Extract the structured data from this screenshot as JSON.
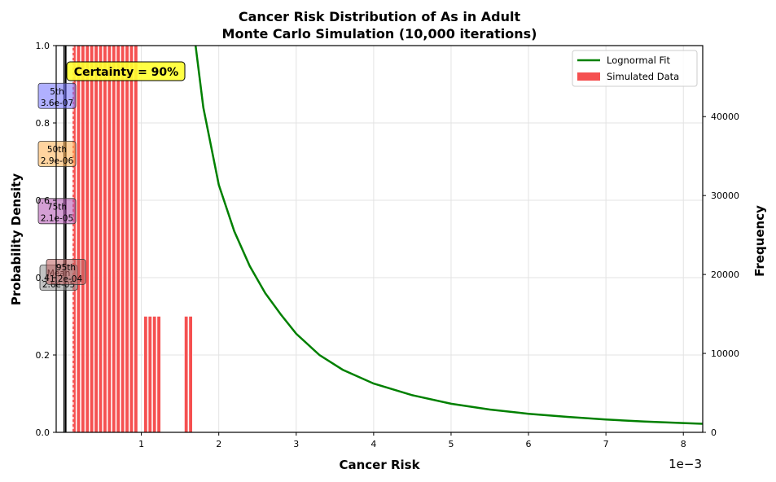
{
  "chart_data": {
    "type": "bar",
    "title_line1": "Cancer Risk Distribution of As in Adult",
    "title_line2": "Monte Carlo Simulation (10,000 iterations)",
    "xlabel": "Cancer Risk",
    "ylabel_left": "Probability Density",
    "ylabel_right": "Frequency",
    "x_offset_label": "1e−3",
    "xlim": [
      -0.0001,
      0.00825
    ],
    "ylim_left": [
      0,
      1.0
    ],
    "ylim_right": [
      0,
      49000
    ],
    "x_ticks": [
      {
        "value": 0.001,
        "label": "1"
      },
      {
        "value": 0.002,
        "label": "2"
      },
      {
        "value": 0.003,
        "label": "3"
      },
      {
        "value": 0.004,
        "label": "4"
      },
      {
        "value": 0.005,
        "label": "5"
      },
      {
        "value": 0.006,
        "label": "6"
      },
      {
        "value": 0.007,
        "label": "7"
      },
      {
        "value": 0.008,
        "label": "8"
      }
    ],
    "y_left_ticks": [
      {
        "value": 0.0,
        "label": "0.0"
      },
      {
        "value": 0.2,
        "label": "0.2"
      },
      {
        "value": 0.4,
        "label": "0.4"
      },
      {
        "value": 0.6,
        "label": "0.6"
      },
      {
        "value": 0.8,
        "label": "0.8"
      },
      {
        "value": 1.0,
        "label": "1.0"
      }
    ],
    "y_right_ticks": [
      {
        "value": 0,
        "label": "0"
      },
      {
        "value": 10000,
        "label": "10000"
      },
      {
        "value": 20000,
        "label": "20000"
      },
      {
        "value": 30000,
        "label": "30000"
      },
      {
        "value": 40000,
        "label": "40000"
      }
    ],
    "grid": true,
    "legend": {
      "placement": "top-right",
      "entries": [
        {
          "label": "Lognormal Fit",
          "color": "#008000",
          "kind": "line"
        },
        {
          "label": "Simulated Data",
          "color": "#f55050",
          "kind": "patch"
        }
      ]
    },
    "histogram": {
      "name": "Simulated Data",
      "color": "#f55050",
      "bins": [
        {
          "x": 0.000108,
          "density": 1.0
        },
        {
          "x": 0.000165,
          "density": 1.0
        },
        {
          "x": 0.000222,
          "density": 1.0
        },
        {
          "x": 0.000279,
          "density": 1.0
        },
        {
          "x": 0.000336,
          "density": 1.0
        },
        {
          "x": 0.000393,
          "density": 1.0
        },
        {
          "x": 0.00045,
          "density": 1.0
        },
        {
          "x": 0.000507,
          "density": 1.0
        },
        {
          "x": 0.000564,
          "density": 1.0
        },
        {
          "x": 0.000621,
          "density": 1.0
        },
        {
          "x": 0.000678,
          "density": 1.0
        },
        {
          "x": 0.000735,
          "density": 1.0
        },
        {
          "x": 0.000792,
          "density": 1.0
        },
        {
          "x": 0.000849,
          "density": 1.0
        },
        {
          "x": 0.000906,
          "density": 1.0
        },
        {
          "x": 0.001032,
          "density": 0.3
        },
        {
          "x": 0.001089,
          "density": 0.3
        },
        {
          "x": 0.001146,
          "density": 0.3
        },
        {
          "x": 0.001203,
          "density": 0.3
        },
        {
          "x": 0.001556,
          "density": 0.3
        },
        {
          "x": 0.001613,
          "density": 0.3
        }
      ],
      "bin_width": 5.7e-05
    },
    "fit_curve": {
      "name": "Lognormal Fit",
      "color": "#008000",
      "points": [
        [
          0.0017,
          1.0
        ],
        [
          0.0018,
          0.84
        ],
        [
          0.0019,
          0.74
        ],
        [
          0.002,
          0.64
        ],
        [
          0.0022,
          0.52
        ],
        [
          0.0024,
          0.43
        ],
        [
          0.0026,
          0.36
        ],
        [
          0.0028,
          0.305
        ],
        [
          0.003,
          0.255
        ],
        [
          0.0033,
          0.2
        ],
        [
          0.0036,
          0.162
        ],
        [
          0.004,
          0.126
        ],
        [
          0.0045,
          0.096
        ],
        [
          0.005,
          0.074
        ],
        [
          0.0055,
          0.059
        ],
        [
          0.006,
          0.048
        ],
        [
          0.0065,
          0.04
        ],
        [
          0.007,
          0.033
        ],
        [
          0.0075,
          0.028
        ],
        [
          0.008,
          0.024
        ],
        [
          0.00825,
          0.022
        ]
      ]
    },
    "certainty_label": "Certainty = 90%",
    "percentiles": [
      {
        "name": "5th",
        "value_text": "3.6e-07",
        "x": 4e-07,
        "y": 0.87,
        "color": "#7070ff"
      },
      {
        "name": "50th",
        "value_text": "2.9e-06",
        "x": 3e-06,
        "y": 0.72,
        "color": "#ffb050"
      },
      {
        "name": "75th",
        "value_text": "2.1e-05",
        "x": 2.1e-05,
        "y": 0.572,
        "color": "#b050b0"
      },
      {
        "name": "95th",
        "value_text": "1.2e-04",
        "x": 0.00012,
        "y": 0.415,
        "color": "#c06060"
      },
      {
        "name": "Mean",
        "value_text": "2.6e-05",
        "x": 2.6e-05,
        "y": 0.4,
        "color": "#909090"
      }
    ]
  }
}
